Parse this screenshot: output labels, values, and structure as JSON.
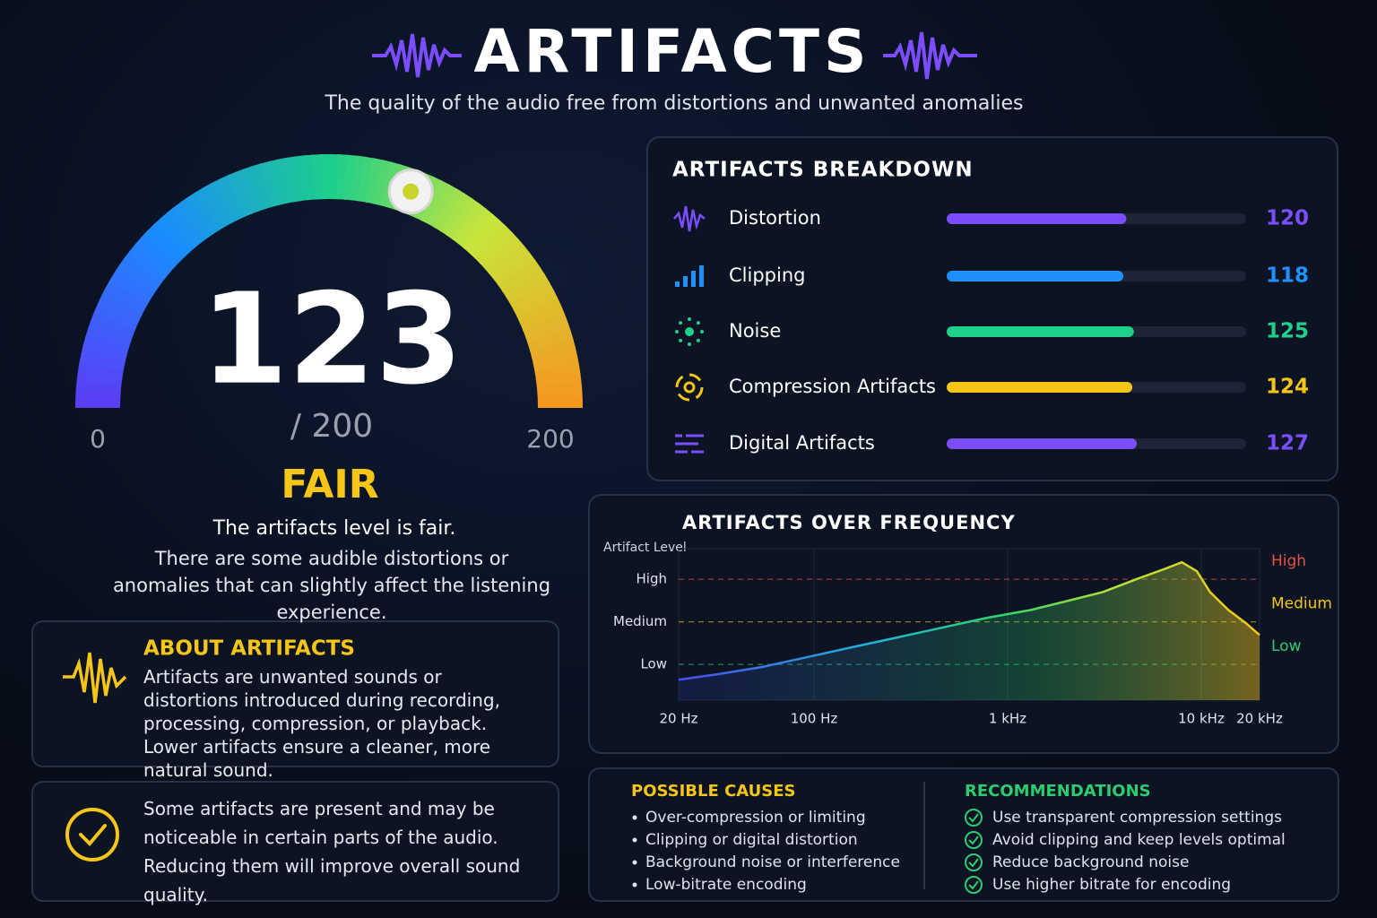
{
  "header": {
    "title": "ARTIFACTS",
    "subtitle": "The quality of the audio free from distortions and unwanted anomalies"
  },
  "gauge": {
    "value": 123,
    "max_label": "/ 200",
    "min": 0,
    "max": 200,
    "rating": "FAIR",
    "summary": "The artifacts level is fair.",
    "description": "There are some audible distortions or anomalies that can slightly affect the listening experience."
  },
  "breakdown": {
    "title": "ARTIFACTS BREAKDOWN",
    "items": [
      {
        "label": "Distortion",
        "value": 120,
        "color": "#7b4dff"
      },
      {
        "label": "Clipping",
        "value": 118,
        "color": "#1e90ff"
      },
      {
        "label": "Noise",
        "value": 125,
        "color": "#1fd08a"
      },
      {
        "label": "Compression Artifacts",
        "value": 124,
        "color": "#f5c518"
      },
      {
        "label": "Digital Artifacts",
        "value": 127,
        "color": "#7b4dff"
      }
    ]
  },
  "chart_data": {
    "type": "line",
    "title": "ARTIFACTS OVER FREQUENCY",
    "ylabel": "Artifact Level",
    "x": [
      20,
      32,
      54,
      92,
      156,
      267,
      454,
      774,
      1320,
      2250,
      3100,
      4740,
      6530,
      7940,
      9490,
      11100,
      13800,
      17000,
      20000
    ],
    "values": [
      0.64,
      0.77,
      0.94,
      1.17,
      1.4,
      1.63,
      1.86,
      2.09,
      2.28,
      2.54,
      2.7,
      3.02,
      3.25,
      3.4,
      3.19,
      2.7,
      2.28,
      1.97,
      1.69
    ],
    "xlim": [
      20,
      20000
    ],
    "xscale": "log",
    "xticks": [
      {
        "value": 20,
        "label": "20 Hz"
      },
      {
        "value": 100,
        "label": "100 Hz"
      },
      {
        "value": 1000,
        "label": "1 kHz"
      },
      {
        "value": 10000,
        "label": "10 kHz"
      },
      {
        "value": 20000,
        "label": "20 kHz"
      }
    ],
    "ylim": [
      0.16,
      3.72
    ],
    "yticks": [
      {
        "value": 1,
        "label": "Low"
      },
      {
        "value": 2,
        "label": "Medium"
      },
      {
        "value": 3,
        "label": "High"
      }
    ],
    "zones": [
      {
        "label": "Low",
        "color": "#2ecc71"
      },
      {
        "label": "Medium",
        "color": "#f1c40f"
      },
      {
        "label": "High",
        "color": "#e5533d"
      }
    ]
  },
  "about": {
    "title": "ABOUT ARTIFACTS",
    "text": "Artifacts are unwanted sounds or distortions introduced during recording, processing, compression, or playback. Lower artifacts ensure a cleaner, more natural sound."
  },
  "note": {
    "text": "Some artifacts are present and may be noticeable in certain parts of the audio. Reducing them will improve overall sound quality."
  },
  "causes": {
    "title": "POSSIBLE CAUSES",
    "items": [
      "Over-compression or limiting",
      "Clipping or digital distortion",
      "Background noise or interference",
      "Low-bitrate encoding"
    ]
  },
  "recommendations": {
    "title": "RECOMMENDATIONS",
    "items": [
      "Use transparent compression settings",
      "Avoid clipping and keep levels optimal",
      "Reduce background noise",
      "Use higher bitrate for encoding"
    ]
  }
}
